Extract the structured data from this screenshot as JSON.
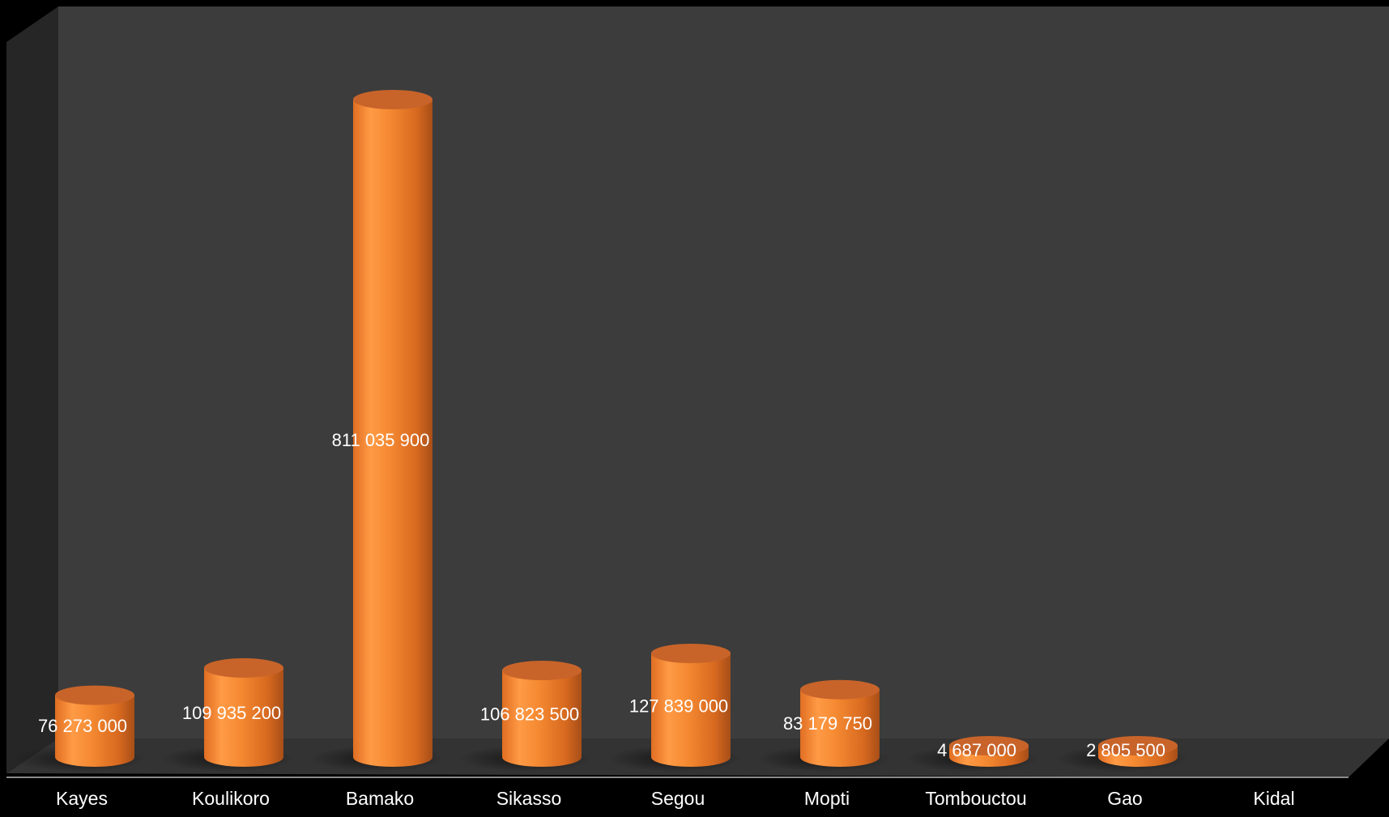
{
  "chart_data": {
    "type": "bar",
    "style": "3d-cylinder",
    "title": "",
    "xlabel": "",
    "ylabel": "",
    "categories": [
      "Kayes",
      "Koulikoro",
      "Bamako",
      "Sikasso",
      "Segou",
      "Mopti",
      "Tombouctou",
      "Gao",
      "Kidal"
    ],
    "values": [
      76273000,
      109935200,
      811035900,
      106823500,
      127839000,
      83179750,
      4687000,
      2805500,
      0
    ],
    "value_labels": [
      "76 273 000",
      "109 935 200",
      "811 035 900",
      "106 823 500",
      "127 839 000",
      "83 179 750",
      "4 687 000",
      "2 805 500",
      ""
    ],
    "ylim": [
      0,
      811035900
    ],
    "grid": false,
    "legend": "none",
    "colors": {
      "bar": "#F58A32",
      "bar_top": "#C8642A",
      "wall": "#3C3C3C",
      "side_wall": "#262626",
      "floor": "#333333",
      "background": "#000000",
      "text": "#FFFFFF"
    }
  }
}
